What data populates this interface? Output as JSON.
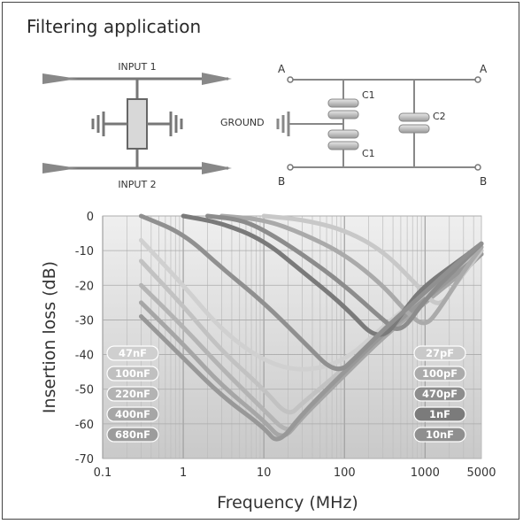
{
  "title": "Filtering application",
  "left_schematic": {
    "input1": "INPUT 1",
    "input2": "INPUT 2"
  },
  "right_schematic": {
    "node_a_left": "A",
    "node_a_right": "A",
    "node_b_left": "B",
    "node_b_right": "B",
    "ground": "GROUND",
    "c1_top": "C1",
    "c1_bottom": "C1",
    "c2": "C2"
  },
  "colors": {
    "panel_bg": "#e9e9e9",
    "panel_grad_bottom": "#c9c9c9",
    "frame": "#444444"
  },
  "chart_data": {
    "type": "line",
    "xlabel": "Frequency (MHz)",
    "ylabel": "Insertion loss (dB)",
    "xscale": "log",
    "xlim": [
      0.1,
      5000
    ],
    "ylim": [
      -70,
      0
    ],
    "x_ticks": [
      "0.1",
      "1",
      "10",
      "100",
      "1000",
      "5000"
    ],
    "x_tick_values": [
      0.1,
      1,
      10,
      100,
      1000,
      5000
    ],
    "y_ticks": [
      "0",
      "-10",
      "-20",
      "-30",
      "-40",
      "-50",
      "-60",
      "-70"
    ],
    "y_tick_values": [
      0,
      -10,
      -20,
      -30,
      -40,
      -50,
      -60,
      -70
    ],
    "grid": true,
    "legend_left": [
      "47nF",
      "100nF",
      "220nF",
      "400nF",
      "680nF"
    ],
    "legend_right": [
      "27pF",
      "100pF",
      "470pF",
      "1nF",
      "10nF"
    ],
    "series": [
      {
        "name": "47nF",
        "color": "#d0d0d0",
        "points": [
          [
            0.3,
            -7
          ],
          [
            1,
            -20
          ],
          [
            3,
            -33
          ],
          [
            10,
            -42
          ],
          [
            30,
            -45
          ],
          [
            100,
            -42
          ],
          [
            300,
            -32
          ],
          [
            1000,
            -22
          ],
          [
            3000,
            -13
          ],
          [
            5000,
            -9
          ]
        ]
      },
      {
        "name": "100nF",
        "color": "#c2c2c2",
        "points": [
          [
            0.3,
            -13
          ],
          [
            1,
            -26
          ],
          [
            3,
            -39
          ],
          [
            10,
            -50
          ],
          [
            20,
            -58
          ],
          [
            30,
            -54
          ],
          [
            100,
            -44
          ],
          [
            300,
            -33
          ],
          [
            1000,
            -23
          ],
          [
            3000,
            -14
          ],
          [
            5000,
            -10
          ]
        ]
      },
      {
        "name": "220nF",
        "color": "#b4b4b4",
        "points": [
          [
            0.3,
            -20
          ],
          [
            1,
            -32
          ],
          [
            3,
            -44
          ],
          [
            10,
            -56
          ],
          [
            20,
            -63
          ],
          [
            30,
            -58
          ],
          [
            100,
            -46
          ],
          [
            300,
            -34
          ],
          [
            1000,
            -24
          ],
          [
            3000,
            -15
          ],
          [
            5000,
            -11
          ]
        ]
      },
      {
        "name": "400nF",
        "color": "#a6a6a6",
        "points": [
          [
            0.3,
            -25
          ],
          [
            1,
            -37
          ],
          [
            3,
            -49
          ],
          [
            10,
            -59
          ],
          [
            17,
            -65
          ],
          [
            30,
            -58
          ],
          [
            100,
            -46
          ],
          [
            300,
            -35
          ],
          [
            1000,
            -25
          ],
          [
            3000,
            -16
          ],
          [
            5000,
            -11
          ]
        ]
      },
      {
        "name": "680nF",
        "color": "#989898",
        "points": [
          [
            0.3,
            -29
          ],
          [
            1,
            -41
          ],
          [
            3,
            -52
          ],
          [
            10,
            -61
          ],
          [
            15,
            -66
          ],
          [
            30,
            -57
          ],
          [
            100,
            -45
          ],
          [
            300,
            -34
          ],
          [
            1000,
            -24
          ],
          [
            3000,
            -15
          ],
          [
            5000,
            -11
          ]
        ]
      },
      {
        "name": "27pF",
        "color": "#c8c8c8",
        "points": [
          [
            10,
            0
          ],
          [
            30,
            -1
          ],
          [
            100,
            -4
          ],
          [
            300,
            -10
          ],
          [
            800,
            -20
          ],
          [
            1500,
            -27
          ],
          [
            2500,
            -19
          ],
          [
            5000,
            -10
          ]
        ]
      },
      {
        "name": "100pF",
        "color": "#aaaaaa",
        "points": [
          [
            3,
            0
          ],
          [
            10,
            -1
          ],
          [
            30,
            -5
          ],
          [
            100,
            -11
          ],
          [
            300,
            -20
          ],
          [
            600,
            -28
          ],
          [
            1000,
            -32
          ],
          [
            1500,
            -27
          ],
          [
            3000,
            -16
          ],
          [
            5000,
            -9
          ]
        ]
      },
      {
        "name": "470pF",
        "color": "#8c8c8c",
        "points": [
          [
            2,
            0
          ],
          [
            5,
            -1
          ],
          [
            10,
            -4
          ],
          [
            30,
            -11
          ],
          [
            100,
            -20
          ],
          [
            300,
            -30
          ],
          [
            500,
            -34
          ],
          [
            1000,
            -24
          ],
          [
            3000,
            -13
          ],
          [
            5000,
            -8
          ]
        ]
      },
      {
        "name": "1nF",
        "color": "#7a7a7a",
        "points": [
          [
            1,
            0
          ],
          [
            3,
            -2
          ],
          [
            10,
            -7
          ],
          [
            30,
            -16
          ],
          [
            100,
            -26
          ],
          [
            280,
            -37
          ],
          [
            600,
            -26
          ],
          [
            1000,
            -20
          ],
          [
            3000,
            -12
          ],
          [
            5000,
            -8
          ]
        ]
      },
      {
        "name": "10nF",
        "color": "#909090",
        "points": [
          [
            0.3,
            0
          ],
          [
            1,
            -5
          ],
          [
            3,
            -15
          ],
          [
            10,
            -25
          ],
          [
            30,
            -36
          ],
          [
            80,
            -46
          ],
          [
            150,
            -40
          ],
          [
            300,
            -33
          ],
          [
            1000,
            -22
          ],
          [
            3000,
            -12
          ],
          [
            5000,
            -8
          ]
        ]
      }
    ]
  }
}
